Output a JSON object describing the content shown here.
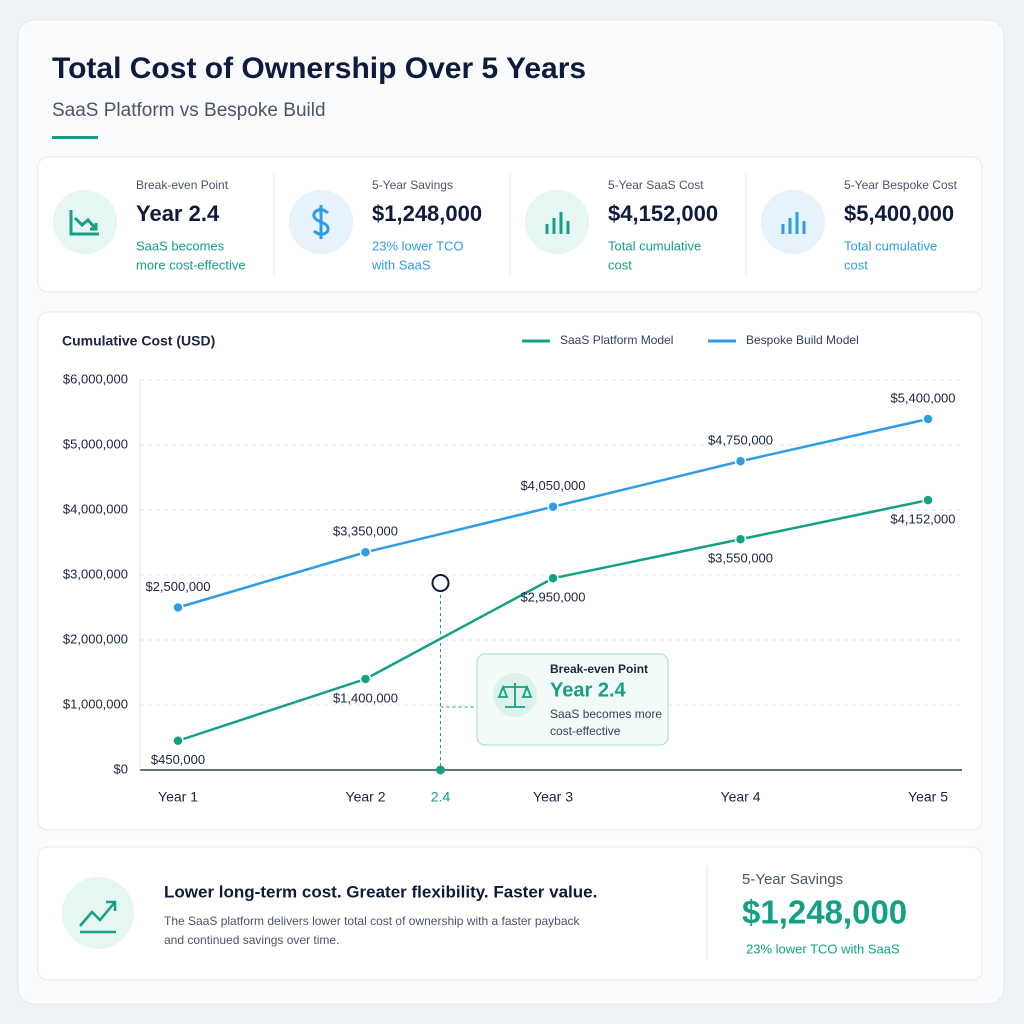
{
  "header": {
    "title": "Total Cost of Ownership Over 5 Years",
    "subtitle": "SaaS Platform vs Bespoke Build"
  },
  "kpis": [
    {
      "label": "Break-even Point",
      "value": "Year 2.4",
      "note": [
        "SaaS becomes",
        "more cost-effective"
      ],
      "color": "#14a085"
    },
    {
      "label": "5-Year Savings",
      "value": "$1,248,000",
      "note": [
        "23% lower TCO",
        "with SaaS"
      ],
      "color": "#2e9de4"
    },
    {
      "label": "5-Year SaaS Cost",
      "value": "$4,152,000",
      "note": [
        "Total cumulative",
        "cost"
      ],
      "color": "#14a085"
    },
    {
      "label": "5-Year Bespoke Cost",
      "value": "$5,400,000",
      "note": [
        "Total cumulative",
        "cost"
      ],
      "color": "#2e9de4"
    }
  ],
  "chart_data": {
    "type": "line",
    "y_label": "Cumulative Cost (USD)",
    "x": [
      1,
      2,
      3,
      4,
      5
    ],
    "xlim": [
      1,
      5
    ],
    "xticks": [
      {
        "value": 1,
        "label": "Year 1"
      },
      {
        "value": 2,
        "label": "Year 2"
      },
      2.4,
      {
        "value": 3,
        "label": "Year 3"
      },
      {
        "value": 4,
        "label": "Year 4"
      },
      {
        "value": 5,
        "label": "Year 5"
      }
    ],
    "ylim": [
      0,
      6000000
    ],
    "yticks": [
      {
        "value": 0,
        "label": "$0"
      },
      {
        "value": 1000000,
        "label": "$1,000,000"
      },
      {
        "value": 2000000,
        "label": "$2,000,000"
      },
      {
        "value": 3000000,
        "label": "$3,000,000"
      },
      {
        "value": 4000000,
        "label": "$4,000,000"
      },
      {
        "value": 5000000,
        "label": "$5,000,000"
      },
      {
        "value": 6000000,
        "label": "$6,000,000"
      }
    ],
    "grid": true,
    "series": [
      {
        "name": "SaaS Platform Model",
        "color": "#14a085",
        "values": [
          450000,
          1400000,
          2950000,
          3550000,
          4152000
        ],
        "value_labels": [
          "$450,000",
          "$1,400,000",
          "$2,950,000",
          "$3,550,000",
          "$4,152,000"
        ]
      },
      {
        "name": "Bespoke Build Model",
        "color": "#2e9de4",
        "values": [
          2500000,
          3350000,
          4050000,
          4750000,
          5400000
        ],
        "value_labels": [
          "$2,500,000",
          "$3,350,000",
          "$4,050,000",
          "$4,750,000",
          "$5,400,000"
        ]
      }
    ],
    "break_even": {
      "x": 2.4,
      "value": 2877000,
      "title": "Break-even Point",
      "label": "Year 2.4",
      "note": [
        "SaaS becomes more",
        "cost-effective"
      ]
    }
  },
  "footer": {
    "headline": "Lower long-term cost. Greater flexibility. Faster value.",
    "text": [
      "The SaaS platform delivers lower total cost of ownership with a faster payback",
      "and continued savings over time."
    ],
    "stat_label": "5-Year Savings",
    "stat_value": "$1,248,000",
    "stat_note": "23% lower TCO with SaaS"
  }
}
